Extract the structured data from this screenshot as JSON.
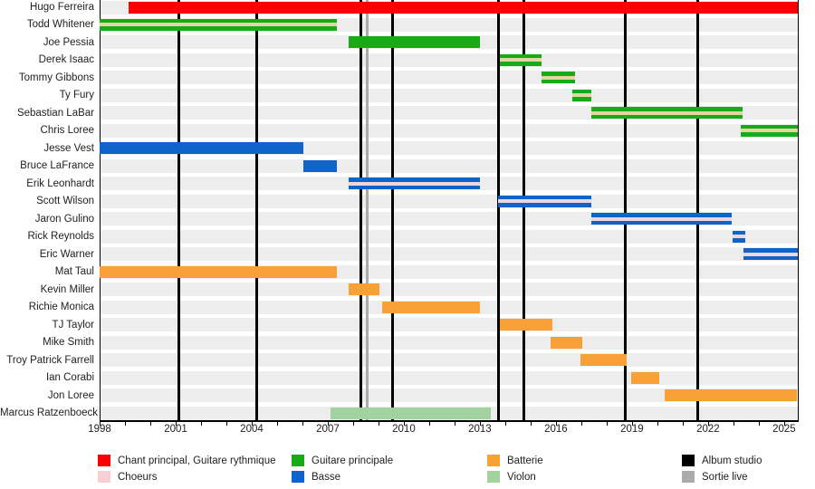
{
  "chart_data": {
    "type": "gantt-timeline",
    "description": "Band membership timeline (Gantt-style), rows = members, bars = tenure by instrument, vertical lines = releases",
    "x_axis": {
      "min": 1998,
      "max": 2025.54,
      "labeled_ticks": [
        "1998",
        "2001",
        "2004",
        "2007",
        "2010",
        "2013",
        "2016",
        "2019",
        "2022",
        "2025"
      ],
      "minor_tick_every_years": 1
    },
    "colors": {
      "red": "#fa0000",
      "green": "#18ab18",
      "blue": "#0e64c8",
      "orange": "#f8a136",
      "violon": "#a2d39e",
      "pink": "#f9ced3",
      "stripe_tan": "#e4d5a4",
      "stripe_pink": "#edd6dd",
      "album": "#000000",
      "live": "#ababab",
      "row_band": "#ededed"
    },
    "members": [
      {
        "name": "Hugo Ferreira",
        "color": "red",
        "start": 1999.15,
        "end": 2025.54,
        "stripe": null
      },
      {
        "name": "Todd Whitener",
        "color": "green",
        "start": 1998.0,
        "end": 2007.36,
        "stripe": "tan"
      },
      {
        "name": "Joe Pessia",
        "color": "green",
        "start": 2007.82,
        "end": 2013.0,
        "stripe": null
      },
      {
        "name": "Derek Isaac",
        "color": "green",
        "start": 2013.79,
        "end": 2015.43,
        "stripe": "tan"
      },
      {
        "name": "Tommy Gibbons",
        "color": "green",
        "start": 2015.43,
        "end": 2016.75,
        "stripe": "tan"
      },
      {
        "name": "Ty Fury",
        "color": "green",
        "start": 2016.64,
        "end": 2017.39,
        "stripe": "tan"
      },
      {
        "name": "Sebastian LaBar",
        "color": "green",
        "start": 2017.39,
        "end": 2023.36,
        "stripe": "tan"
      },
      {
        "name": "Chris Loree",
        "color": "green",
        "start": 2023.29,
        "end": 2025.54,
        "stripe": "tan"
      },
      {
        "name": "Jesse Vest",
        "color": "blue",
        "start": 1998.0,
        "end": 2006.04,
        "stripe": null
      },
      {
        "name": "Bruce LaFrance",
        "color": "blue",
        "start": 2006.04,
        "end": 2007.36,
        "stripe": null
      },
      {
        "name": "Erik Leonhardt",
        "color": "blue",
        "start": 2007.82,
        "end": 2013.0,
        "stripe": "pink"
      },
      {
        "name": "Scott Wilson",
        "color": "blue",
        "start": 2013.71,
        "end": 2017.39,
        "stripe": "pink"
      },
      {
        "name": "Jaron Gulino",
        "color": "blue",
        "start": 2017.39,
        "end": 2022.93,
        "stripe": "pink"
      },
      {
        "name": "Rick Reynolds",
        "color": "blue",
        "start": 2022.96,
        "end": 2023.46,
        "stripe": "pink"
      },
      {
        "name": "Eric Warner",
        "color": "blue",
        "start": 2023.39,
        "end": 2025.54,
        "stripe": "pink"
      },
      {
        "name": "Mat Taul",
        "color": "orange",
        "start": 1998.0,
        "end": 2007.36,
        "stripe": null
      },
      {
        "name": "Kevin Miller",
        "color": "orange",
        "start": 2007.82,
        "end": 2009.04,
        "stripe": null
      },
      {
        "name": "Richie Monica",
        "color": "orange",
        "start": 2009.14,
        "end": 2013.0,
        "stripe": null
      },
      {
        "name": "TJ Taylor",
        "color": "orange",
        "start": 2013.79,
        "end": 2015.86,
        "stripe": null
      },
      {
        "name": "Mike Smith",
        "color": "orange",
        "start": 2015.79,
        "end": 2017.04,
        "stripe": null
      },
      {
        "name": "Troy Patrick Farrell",
        "color": "orange",
        "start": 2016.96,
        "end": 2018.79,
        "stripe": null
      },
      {
        "name": "Ian Corabi",
        "color": "orange",
        "start": 2018.96,
        "end": 2020.07,
        "stripe": null
      },
      {
        "name": "Jon Loree",
        "color": "orange",
        "start": 2020.29,
        "end": 2025.5,
        "stripe": null
      },
      {
        "name": "Marcus Ratzenboeck",
        "color": "violon",
        "start": 2007.11,
        "end": 2013.43,
        "stripe": null
      }
    ],
    "album_studio_lines": [
      2001.11,
      2004.18,
      2008.29,
      2009.54,
      2013.75,
      2014.75,
      2018.75,
      2021.59
    ],
    "sortie_live_lines": [
      2008.54
    ],
    "legend": [
      {
        "label": "Chant principal, Guitare rythmique",
        "color": "red",
        "col": 0,
        "row": 0
      },
      {
        "label": "Choeurs",
        "color": "pink",
        "col": 0,
        "row": 1
      },
      {
        "label": "Guitare principale",
        "color": "green",
        "col": 1,
        "row": 0
      },
      {
        "label": "Basse",
        "color": "blue",
        "col": 1,
        "row": 1
      },
      {
        "label": "Batterie",
        "color": "orange",
        "col": 2,
        "row": 0
      },
      {
        "label": "Violon",
        "color": "violon",
        "col": 2,
        "row": 1
      },
      {
        "label": "Album studio",
        "color": "album",
        "col": 3,
        "row": 0
      },
      {
        "label": "Sortie live",
        "color": "live",
        "col": 3,
        "row": 1
      }
    ]
  }
}
